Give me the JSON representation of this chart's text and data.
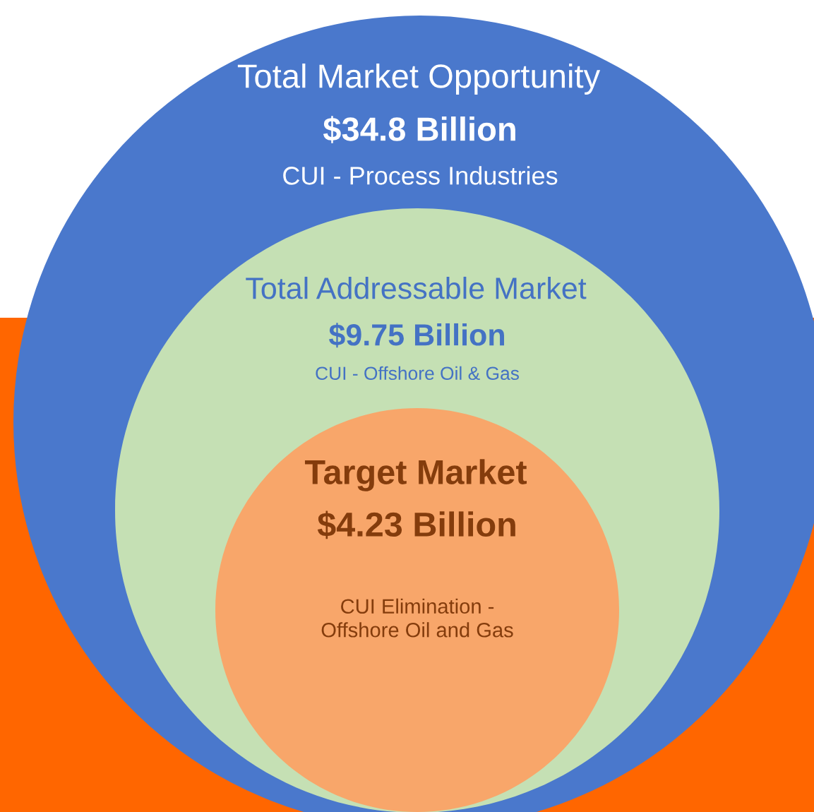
{
  "chart_data": {
    "type": "other",
    "categories": [
      "Total Market Opportunity",
      "Total Addressable Market",
      "Target Market"
    ],
    "values": [
      34.8,
      9.75,
      4.23
    ],
    "value_labels": [
      "$34.8 Billion",
      "$9.75 Billion",
      "$4.23 Billion"
    ],
    "colors": [
      "#4a78cc",
      "#c5e0b4",
      "#f8a66a"
    ],
    "annotations": [
      "CUI - Process Industries",
      "CUI - Offshore Oil & Gas",
      "CUI Elimination -\nOffshore Oil and Gas"
    ]
  }
}
